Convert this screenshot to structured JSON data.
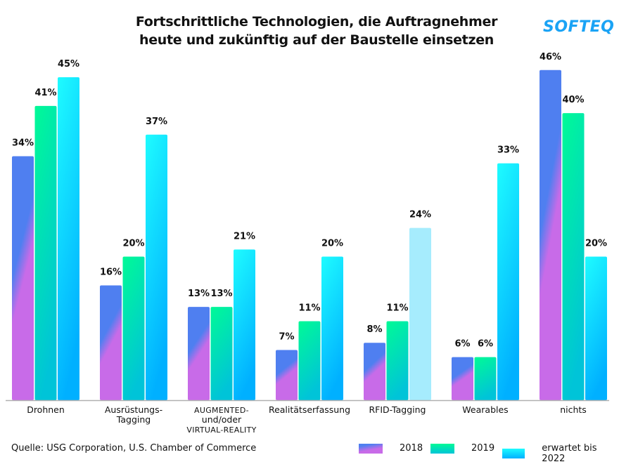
{
  "header": {
    "title_line1": "Fortschrittliche Technologien, die Auftragnehmer",
    "title_line2": "heute und zukünftig auf der Baustelle einsetzen",
    "logo": "SOFTEQ"
  },
  "footer": {
    "source": "Quelle: USG Corporation, U.S. Chamber of Commerce"
  },
  "colors": {
    "logo": "#1aa3f5",
    "series_2018": [
      "#4f7ff0",
      "#c86be8"
    ],
    "series_2019": [
      "#00fa96",
      "#00c4d8"
    ],
    "series_2022": [
      "#1efcff",
      "#00b0ff"
    ],
    "series_2022_highlight": "#a6ecfd",
    "axis": "#b0b0b0"
  },
  "chart_data": {
    "type": "bar",
    "title": "Fortschrittliche Technologien, die Auftragnehmer heute und zukünftig auf der Baustelle einsetzen",
    "xlabel": "",
    "ylabel": "",
    "ylim": [
      0,
      48
    ],
    "grid": false,
    "legend_position": "bottom-right",
    "categories": [
      [
        "Drohnen"
      ],
      [
        "Ausrüstungs-",
        "Tagging"
      ],
      [
        "AUGMENTED-",
        "und/oder",
        "VIRTUAL-REALITY"
      ],
      [
        "Realitätserfassung"
      ],
      [
        "RFID-Tagging"
      ],
      [
        "Wearables"
      ],
      [
        "nichts"
      ]
    ],
    "series": [
      {
        "name": "2018",
        "values": [
          34,
          16,
          13,
          7,
          8,
          6,
          46
        ],
        "labels": [
          "34%",
          "16%",
          "13%",
          "7%",
          "8%",
          "6%",
          "46%"
        ]
      },
      {
        "name": "2019",
        "values": [
          41,
          20,
          13,
          11,
          11,
          6,
          40
        ],
        "labels": [
          "41%",
          "20%",
          "13%",
          "11%",
          "11%",
          "6%",
          "40%"
        ]
      },
      {
        "name": "erwartet bis 2022",
        "values": [
          45,
          37,
          21,
          20,
          24,
          33,
          20
        ],
        "labels": [
          "45%",
          "37%",
          "21%",
          "20%",
          "24%",
          "33%",
          "20%"
        ]
      }
    ],
    "highlighted_points": [
      {
        "series": 2,
        "category": 4
      }
    ]
  },
  "legend": [
    {
      "label": "2018"
    },
    {
      "label": "2019"
    },
    {
      "label": "erwartet bis 2022"
    }
  ]
}
